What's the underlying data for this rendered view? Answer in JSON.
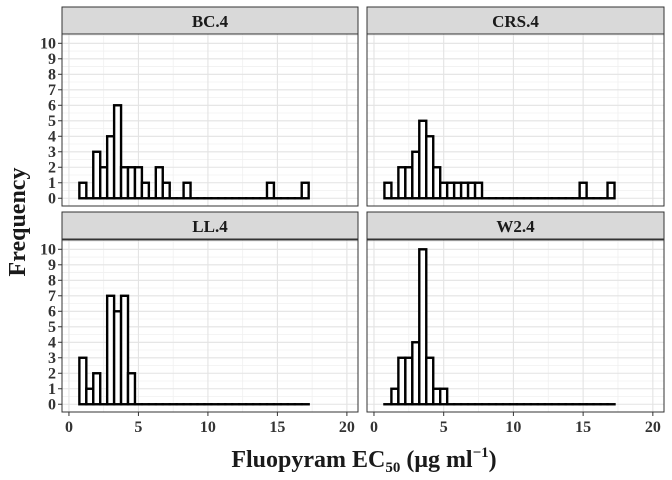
{
  "chart_data": {
    "type": "bar",
    "subtype": "faceted-histogram",
    "xlabel": "Fluopyram EC50 (μg ml−1)",
    "xlabel_parts": {
      "main": "Fluopyram EC",
      "subscript": "50",
      "unit_open": " (μg ml",
      "superscript": "−1",
      "unit_close": ")"
    },
    "ylabel": "Frequency",
    "xlim": [
      -0.5,
      20.8
    ],
    "ylim": [
      -0.5,
      10.6
    ],
    "xticks": [
      0,
      5,
      10,
      15,
      20
    ],
    "yticks": [
      0,
      1,
      2,
      3,
      4,
      5,
      6,
      7,
      8,
      9,
      10
    ],
    "bin_width": 0.5,
    "bin_start": 0.75,
    "bin_count": 33,
    "grid": true,
    "facet_layout": "2x2",
    "facets": [
      {
        "name": "BC.4",
        "counts": [
          1,
          0,
          3,
          2,
          4,
          6,
          2,
          2,
          2,
          1,
          0,
          2,
          1,
          0,
          0,
          1,
          0,
          0,
          0,
          0,
          0,
          0,
          0,
          0,
          0,
          0,
          0,
          1,
          0,
          0,
          0,
          0,
          1
        ]
      },
      {
        "name": "CRS.4",
        "counts": [
          1,
          0,
          2,
          2,
          3,
          5,
          4,
          2,
          1,
          1,
          1,
          1,
          1,
          1,
          0,
          0,
          0,
          0,
          0,
          0,
          0,
          0,
          0,
          0,
          0,
          0,
          0,
          0,
          1,
          0,
          0,
          0,
          1
        ]
      },
      {
        "name": "LL.4",
        "counts": [
          3,
          1,
          2,
          0,
          7,
          6,
          7,
          2,
          0,
          0,
          0,
          0,
          0,
          0,
          0,
          0,
          0,
          0,
          0,
          0,
          0,
          0,
          0,
          0,
          0,
          0,
          0,
          0,
          0,
          0,
          0,
          0,
          0
        ]
      },
      {
        "name": "W2.4",
        "counts": [
          0,
          1,
          3,
          3,
          4,
          10,
          3,
          1,
          1,
          0,
          0,
          0,
          0,
          0,
          0,
          0,
          0,
          0,
          0,
          0,
          0,
          0,
          0,
          0,
          0,
          0,
          0,
          0,
          0,
          0,
          0,
          0,
          0
        ]
      }
    ]
  }
}
